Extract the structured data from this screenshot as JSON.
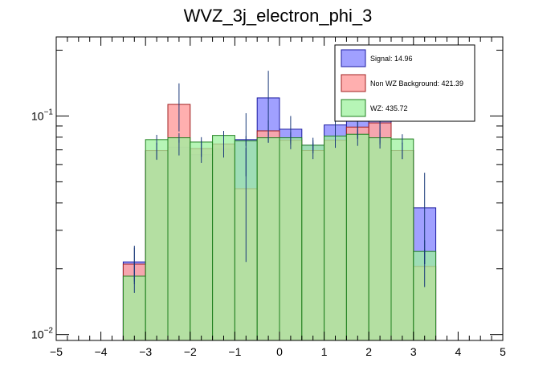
{
  "chart_data": {
    "type": "histogram",
    "title": "WVZ_3j_electron_phi_3",
    "xlabel": "",
    "ylabel": "",
    "xlim": [
      -5,
      5
    ],
    "ylim": [
      0.0094,
      0.23
    ],
    "ylog": true,
    "bin_edges": [
      -5.0,
      -4.5,
      -4.0,
      -3.5,
      -3.0,
      -2.5,
      -2.0,
      -1.5,
      -1.0,
      -0.5,
      0.0,
      0.5,
      1.0,
      1.5,
      2.0,
      2.5,
      3.0,
      3.5,
      4.0,
      4.5,
      5.0
    ],
    "x_ticks": [
      {
        "value": -5,
        "label": "−5"
      },
      {
        "value": -4,
        "label": "−4"
      },
      {
        "value": -3,
        "label": "−3"
      },
      {
        "value": -2,
        "label": "−2"
      },
      {
        "value": -1,
        "label": "−1"
      },
      {
        "value": 0,
        "label": "0"
      },
      {
        "value": 1,
        "label": "1"
      },
      {
        "value": 2,
        "label": "2"
      },
      {
        "value": 3,
        "label": "3"
      },
      {
        "value": 4,
        "label": "4"
      },
      {
        "value": 5,
        "label": "5"
      }
    ],
    "y_ticks": [
      {
        "value": 0.01,
        "base": "10",
        "exp": "−2"
      },
      {
        "value": 0.1,
        "base": "10",
        "exp": "−1"
      }
    ],
    "series": [
      {
        "name": "Signal",
        "legend": "Signal: 14.96",
        "fill": "#a0a0ff",
        "fill_opacity": 1,
        "stroke": "#1a1aa0",
        "values": [
          0,
          0,
          0,
          0.0215,
          0.069,
          0.072,
          0.0665,
          0.0705,
          0.078,
          0.121,
          0.087,
          0.0735,
          0.091,
          0.098,
          0.102,
          0.0695,
          0.038,
          0,
          0,
          0
        ],
        "errors": [
          0,
          0,
          0,
          0.004,
          0.006,
          0.006,
          0.0055,
          0.006,
          0.025,
          0.04,
          0.013,
          0.006,
          0.016,
          0.025,
          0.028,
          0.006,
          0.017,
          0,
          0,
          0
        ]
      },
      {
        "name": "Non WZ Background",
        "legend": "Non WZ Background: 421.39",
        "fill": "#ffa6a6",
        "fill_opacity": 0.9,
        "stroke": "#a02020",
        "values": [
          0,
          0,
          0,
          0.021,
          0.0695,
          0.113,
          0.071,
          0.0745,
          0.0465,
          0.0855,
          0.0775,
          0.0695,
          0.0775,
          0.089,
          0.093,
          0.0695,
          0.0205,
          0,
          0,
          0
        ],
        "errors": [
          0,
          0,
          0,
          0.004,
          0.006,
          0.028,
          0.006,
          0.006,
          0.025,
          0.01,
          0.007,
          0.006,
          0.006,
          0.01,
          0.022,
          0.006,
          0.004,
          0,
          0,
          0
        ]
      },
      {
        "name": "WZ",
        "legend": "WZ: 435.72",
        "fill": "#9ef29e",
        "fill_opacity": 0.75,
        "stroke": "#208020",
        "values": [
          0,
          0,
          0,
          0.0185,
          0.078,
          0.0795,
          0.076,
          0.0815,
          0.077,
          0.0795,
          0.0795,
          0.0735,
          0.081,
          0.0825,
          0.0795,
          0.0785,
          0.024,
          0,
          0,
          0
        ],
        "errors": [
          0,
          0,
          0,
          0.003,
          0.004,
          0.004,
          0.004,
          0.004,
          0.004,
          0.004,
          0.004,
          0.004,
          0.004,
          0.004,
          0.004,
          0.004,
          0.003,
          0,
          0,
          0
        ]
      }
    ],
    "legend_position": "top-right"
  }
}
